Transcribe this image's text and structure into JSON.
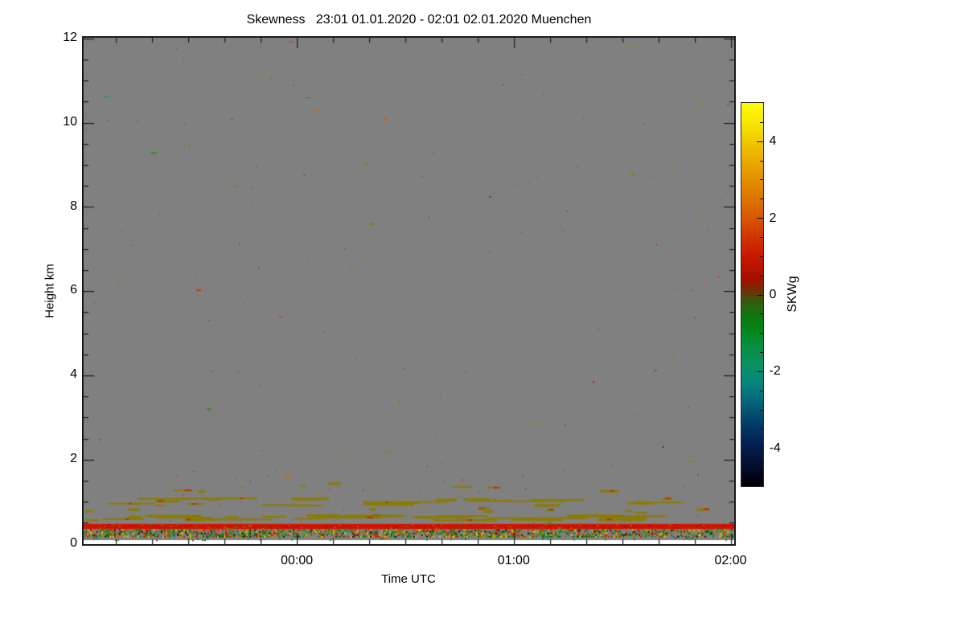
{
  "chart_data": {
    "type": "heatmap",
    "title": "Skewness   23:01 01.01.2020 - 02:01 02.01.2020 Muenchen",
    "xlabel": "Time UTC",
    "ylabel": "Height km",
    "station": "Muenchen",
    "time_start": "23:01 01.01.2020",
    "time_end": "02:01 02.01.2020",
    "x_range_minutes": 180,
    "x_ticks": [
      {
        "minute": 59,
        "label": "00:00"
      },
      {
        "minute": 119,
        "label": "01:00"
      },
      {
        "minute": 179,
        "label": "02:00"
      }
    ],
    "x_minor_every_minutes": 10,
    "ylim": [
      0,
      12
    ],
    "y_ticks": [
      0,
      2,
      4,
      6,
      8,
      10,
      12
    ],
    "y_minor_step": 0.5,
    "background_value_color": "#808080",
    "frame_color": "#1b1b1b",
    "render_seed": 7,
    "colorbar": {
      "label": "SKWg",
      "range": [
        -5,
        5
      ],
      "major_ticks": [
        -4,
        -2,
        0,
        2,
        4
      ],
      "minor_step": 0.5,
      "gradient_stops": [
        {
          "pos": 0,
          "color": "#fdfd00"
        },
        {
          "pos": 5,
          "color": "#f7e800"
        },
        {
          "pos": 12,
          "color": "#eebc00"
        },
        {
          "pos": 20,
          "color": "#e39000"
        },
        {
          "pos": 28,
          "color": "#d96400"
        },
        {
          "pos": 34,
          "color": "#d13c00"
        },
        {
          "pos": 40,
          "color": "#c81800"
        },
        {
          "pos": 46,
          "color": "#a50e00"
        },
        {
          "pos": 49,
          "color": "#6f2f05"
        },
        {
          "pos": 51,
          "color": "#44500c"
        },
        {
          "pos": 54,
          "color": "#1c6e10"
        },
        {
          "pos": 58,
          "color": "#048212"
        },
        {
          "pos": 63,
          "color": "#058f3a"
        },
        {
          "pos": 68,
          "color": "#089162"
        },
        {
          "pos": 73,
          "color": "#07857c"
        },
        {
          "pos": 78,
          "color": "#046579"
        },
        {
          "pos": 83,
          "color": "#02416b"
        },
        {
          "pos": 88,
          "color": "#032458"
        },
        {
          "pos": 93,
          "color": "#041238"
        },
        {
          "pos": 97,
          "color": "#02061a"
        },
        {
          "pos": 100,
          "color": "#000004"
        }
      ]
    },
    "features": {
      "red_band": {
        "km": [
          0.35,
          0.47
        ],
        "color": "#d21200",
        "noise_palette": [
          {
            "c": "#a00c00",
            "w": 0.45
          },
          {
            "c": "#e06000",
            "w": 0.2
          },
          {
            "c": "#8a7c00",
            "w": 0.2
          },
          {
            "c": "#2e8a12",
            "w": 0.15
          }
        ],
        "noise_density": 0.22
      },
      "noise_band": {
        "km": [
          0.16,
          0.34
        ],
        "density": 0.55,
        "palette": [
          {
            "c": "#118a11",
            "w": 0.26
          },
          {
            "c": "#0a5e0a",
            "w": 0.12
          },
          {
            "c": "#cc2000",
            "w": 0.18
          },
          {
            "c": "#d8c400",
            "w": 0.12
          },
          {
            "c": "#8a7c00",
            "w": 0.1
          },
          {
            "c": "#151515",
            "w": 0.08
          },
          {
            "c": "#0a8a66",
            "w": 0.06
          },
          {
            "c": "#e07000",
            "w": 0.08
          }
        ]
      },
      "sparse_band": {
        "km": [
          0.07,
          0.16
        ],
        "density": 0.14,
        "palette": [
          {
            "c": "#117a11",
            "w": 0.5
          },
          {
            "c": "#0a4e0a",
            "w": 0.2
          },
          {
            "c": "#aa2000",
            "w": 0.2
          },
          {
            "c": "#223322",
            "w": 0.1
          }
        ]
      },
      "dash_rows": [
        {
          "km": [
            0.58,
            0.7
          ],
          "count": 34,
          "len": [
            12,
            85
          ]
        },
        {
          "km": [
            0.92,
            1.1
          ],
          "count": 26,
          "len": [
            10,
            75
          ]
        },
        {
          "km": [
            1.25,
            1.5
          ],
          "count": 7,
          "len": [
            6,
            25
          ]
        },
        {
          "km": [
            0.76,
            0.86
          ],
          "count": 10,
          "len": [
            4,
            20
          ]
        }
      ],
      "dash_color": "#8a7c00",
      "dash_accent_color": "#b03800",
      "speckles": {
        "count": 380,
        "km": [
          0.5,
          12.0
        ],
        "extra_low_count": 90,
        "extra_low_km": [
          0.5,
          2.4
        ],
        "palette": [
          {
            "c": "#8a7c00",
            "w": 0.42
          },
          {
            "c": "#a08c00",
            "w": 0.08
          },
          {
            "c": "#2e8a12",
            "w": 0.18
          },
          {
            "c": "#c83c00",
            "w": 0.1
          },
          {
            "c": "#d06400",
            "w": 0.08
          },
          {
            "c": "#c81800",
            "w": 0.06
          },
          {
            "c": "#0a8a66",
            "w": 0.04
          },
          {
            "c": "#404010",
            "w": 0.04
          }
        ]
      }
    }
  }
}
